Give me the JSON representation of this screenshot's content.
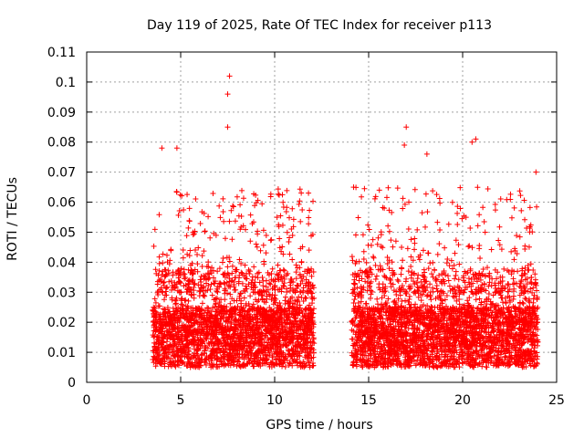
{
  "chart_data": {
    "type": "scatter",
    "title": "Day 119 of 2025, Rate Of TEC Index for receiver p113",
    "xlabel": "GPS time / hours",
    "ylabel": "ROTI / TECUs",
    "xlim": [
      0,
      25
    ],
    "ylim": [
      0,
      0.11
    ],
    "x_ticks": [
      0,
      5,
      10,
      15,
      20,
      25
    ],
    "y_ticks": [
      0,
      0.01,
      0.02,
      0.03,
      0.04,
      0.05,
      0.06,
      0.07,
      0.08,
      0.09,
      0.1,
      0.11
    ],
    "grid": true,
    "marker": "+",
    "series_color": "#ff0000",
    "segments": [
      {
        "x_start": 3.5,
        "x_end": 12.1
      },
      {
        "x_start": 14.1,
        "x_end": 24.0
      }
    ],
    "notable_points": [
      {
        "x": 7.6,
        "y": 0.102
      },
      {
        "x": 7.5,
        "y": 0.096
      },
      {
        "x": 7.5,
        "y": 0.085
      },
      {
        "x": 17.0,
        "y": 0.085
      },
      {
        "x": 4.0,
        "y": 0.078
      },
      {
        "x": 4.8,
        "y": 0.078
      },
      {
        "x": 16.9,
        "y": 0.079
      },
      {
        "x": 18.1,
        "y": 0.076
      },
      {
        "x": 20.5,
        "y": 0.08
      },
      {
        "x": 20.7,
        "y": 0.081
      },
      {
        "x": 23.9,
        "y": 0.07
      },
      {
        "x": 11.8,
        "y": 0.063
      },
      {
        "x": 14.2,
        "y": 0.065
      }
    ]
  }
}
